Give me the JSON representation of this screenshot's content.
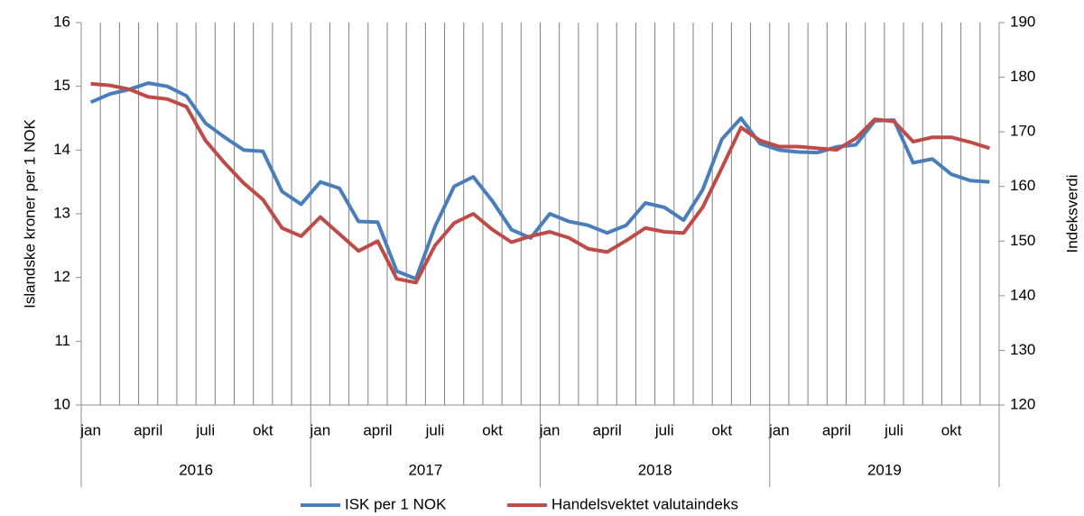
{
  "chart_data": {
    "type": "line",
    "y_label": "Islandske kroner per 1 NOK",
    "y2_label": "Indeksverdi",
    "categories": [
      "jan",
      null,
      null,
      "april",
      null,
      null,
      "juli",
      null,
      null,
      "okt",
      null,
      null,
      "jan",
      null,
      null,
      "april",
      null,
      null,
      "juli",
      null,
      null,
      "okt",
      null,
      null,
      "jan",
      null,
      null,
      "april",
      null,
      null,
      "juli",
      null,
      null,
      "okt",
      null,
      null,
      "jan",
      null,
      null,
      "april",
      null,
      null,
      "juli",
      null,
      null,
      "okt",
      null,
      null
    ],
    "years": [
      "2016",
      "2017",
      "2018",
      "2019"
    ],
    "ylim": [
      10,
      16
    ],
    "yticks": [
      10,
      11,
      12,
      13,
      14,
      15,
      16
    ],
    "y2lim": [
      120,
      190
    ],
    "y2ticks": [
      120,
      130,
      140,
      150,
      160,
      170,
      180,
      190
    ],
    "grid": "x",
    "legend": "bottom",
    "series": [
      {
        "name": "ISK per 1 NOK",
        "color": "#4a7ebb",
        "axis": "y",
        "values": [
          14.75,
          14.88,
          14.95,
          15.05,
          15.0,
          14.85,
          14.42,
          14.2,
          14.0,
          13.98,
          13.35,
          13.15,
          13.5,
          13.4,
          12.88,
          12.87,
          12.1,
          11.98,
          12.8,
          13.43,
          13.58,
          13.2,
          12.75,
          12.62,
          13.0,
          12.88,
          12.82,
          12.7,
          12.82,
          13.17,
          13.1,
          12.9,
          13.38,
          14.17,
          14.5,
          14.1,
          14.0,
          13.97,
          13.96,
          14.05,
          14.08,
          14.46,
          14.47,
          13.8,
          13.86,
          13.62,
          13.52,
          13.5
        ]
      },
      {
        "name": "Handelsvektet valutaindeks",
        "color": "#be4b48",
        "axis": "y2",
        "values": [
          178.8,
          178.5,
          177.8,
          176.4,
          176.0,
          174.6,
          168.4,
          164.3,
          160.6,
          157.6,
          152.4,
          150.9,
          154.4,
          151.3,
          148.2,
          150.0,
          143.1,
          142.4,
          149.2,
          153.3,
          155.0,
          152.1,
          149.8,
          150.9,
          151.7,
          150.6,
          148.6,
          148.0,
          150.1,
          152.4,
          151.7,
          151.5,
          156.2,
          163.4,
          170.8,
          168.4,
          167.3,
          167.3,
          167.0,
          166.7,
          168.8,
          172.3,
          171.9,
          168.2,
          169.0,
          169.0,
          168.1,
          167.0
        ]
      }
    ]
  }
}
